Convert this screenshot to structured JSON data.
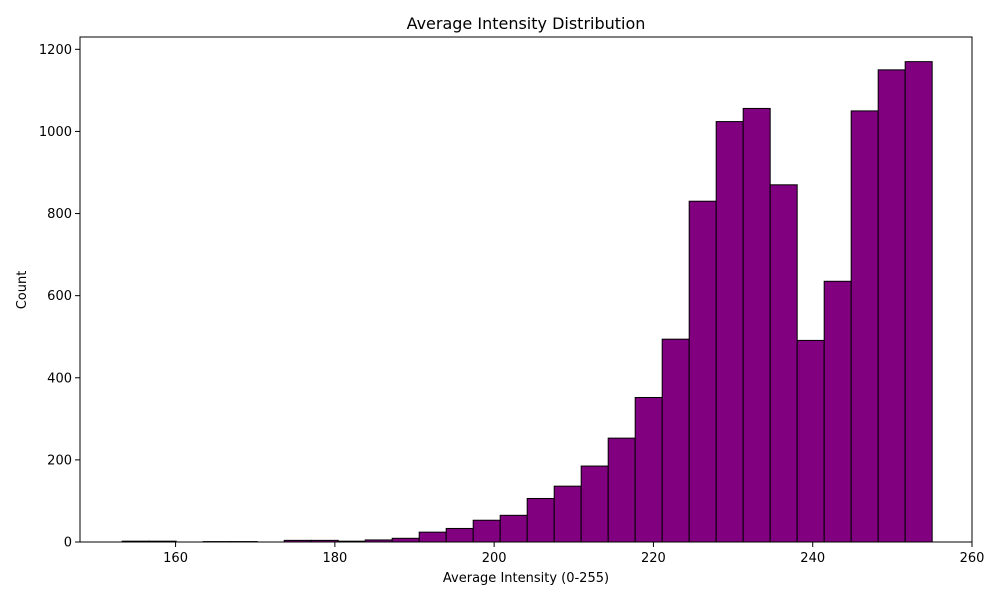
{
  "chart_data": {
    "type": "bar",
    "title": "Average Intensity Distribution",
    "xlabel": "Average Intensity (0-255)",
    "ylabel": "Count",
    "xlim": [
      148,
      260
    ],
    "ylim": [
      0,
      1230
    ],
    "xticks": [
      160,
      180,
      200,
      220,
      240,
      260
    ],
    "yticks": [
      0,
      200,
      400,
      600,
      800,
      1000,
      1200
    ],
    "bar_color": "#800080",
    "edge_color": "#000000",
    "bin_start": 153.3,
    "bin_width": 3.39,
    "values": [
      2,
      2,
      0,
      1,
      1,
      0,
      4,
      4,
      2,
      5,
      9,
      24,
      33,
      53,
      65,
      106,
      136,
      185,
      253,
      352,
      494,
      830,
      1024,
      1056,
      870,
      491,
      635,
      1050,
      1150,
      1170
    ],
    "grid": false,
    "legend": "none"
  }
}
